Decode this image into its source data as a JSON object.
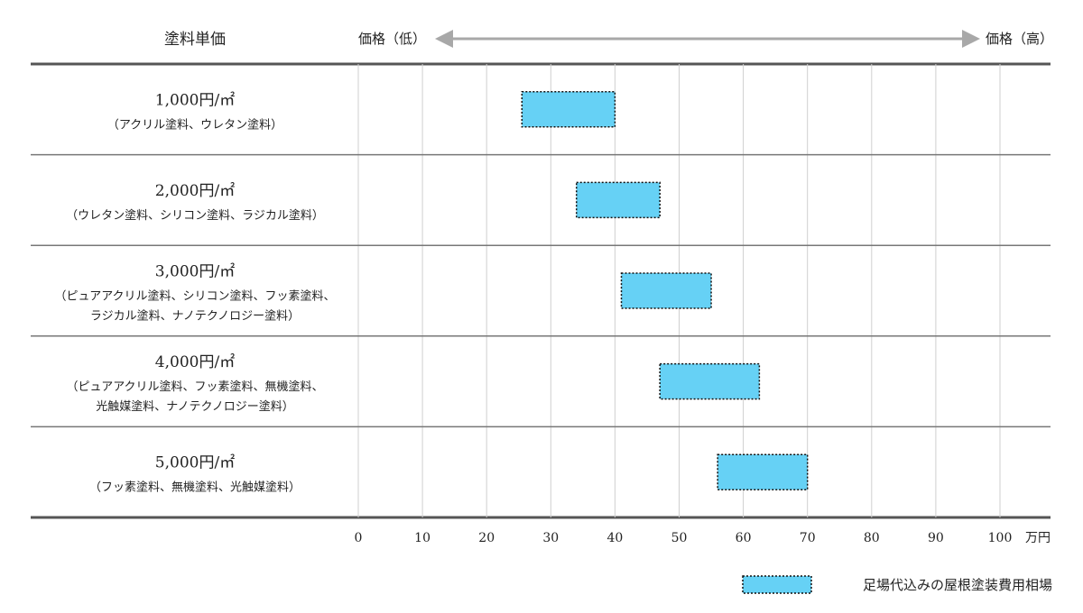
{
  "header": {
    "column_title": "塗料単価",
    "price_low": "価格（低）",
    "price_high": "価格（高）"
  },
  "legend": {
    "label": "足場代込みの屋根塗装費用相場",
    "color": "#66d1f5",
    "placement": "bottom-right"
  },
  "chart_data": {
    "type": "range-bar",
    "orientation": "horizontal",
    "x_unit": "万円",
    "xlim": [
      0,
      100
    ],
    "x_ticks": [
      0,
      10,
      20,
      30,
      40,
      50,
      60,
      70,
      80,
      90,
      100
    ],
    "grid": true,
    "categories": [
      {
        "price": "1,000円/㎡",
        "paints_lines": [
          "（アクリル塗料、ウレタン塗料）"
        ],
        "range": [
          25.5,
          40
        ]
      },
      {
        "price": "2,000円/㎡",
        "paints_lines": [
          "（ウレタン塗料、シリコン塗料、ラジカル塗料）"
        ],
        "range": [
          34,
          47
        ]
      },
      {
        "price": "3,000円/㎡",
        "paints_lines": [
          "（ピュアアクリル塗料、シリコン塗料、フッ素塗料、",
          "ラジカル塗料、ナノテクノロジー塗料）"
        ],
        "range": [
          41,
          55
        ]
      },
      {
        "price": "4,000円/㎡",
        "paints_lines": [
          "（ピュアアクリル塗料、フッ素塗料、無機塗料、",
          "光触媒塗料、ナノテクノロジー塗料）"
        ],
        "range": [
          47,
          62.5
        ]
      },
      {
        "price": "5,000円/㎡",
        "paints_lines": [
          "（フッ素塗料、無機塗料、光触媒塗料）"
        ],
        "range": [
          56,
          70
        ]
      }
    ],
    "series": [
      {
        "name": "足場代込みの屋根塗装費用相場",
        "color": "#66d1f5"
      }
    ]
  }
}
